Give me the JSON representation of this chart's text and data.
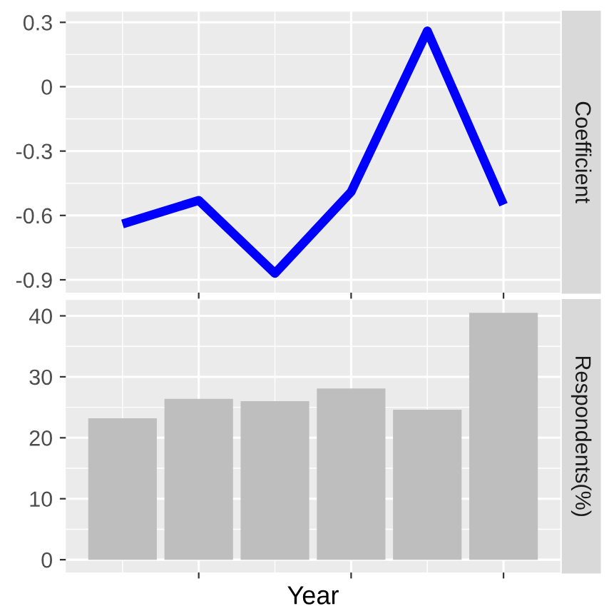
{
  "chart_data": [
    {
      "type": "line",
      "ylabel": "Coefficient",
      "categories": [
        null,
        null,
        null,
        null,
        null,
        null
      ],
      "series": [
        {
          "color": "#0000ff",
          "values": [
            -0.64,
            -0.53,
            -0.87,
            -0.49,
            0.26,
            -0.55
          ]
        }
      ],
      "ylim": [
        -0.96,
        0.35
      ],
      "yticks": [
        -0.9,
        -0.6,
        -0.3,
        0,
        0.3
      ],
      "grid": true,
      "marker": "none"
    },
    {
      "type": "bar",
      "ylabel": "Respondents(%)",
      "xlabel": "Year",
      "categories": [
        null,
        null,
        null,
        null,
        null,
        null
      ],
      "series": [
        {
          "color": "#bebebe",
          "values": [
            23.2,
            26.4,
            26.0,
            28.1,
            24.6,
            40.5
          ]
        }
      ],
      "ylim": [
        -2.1,
        42.6
      ],
      "yticks": [
        0,
        10,
        20,
        30,
        40
      ],
      "grid": true
    }
  ]
}
